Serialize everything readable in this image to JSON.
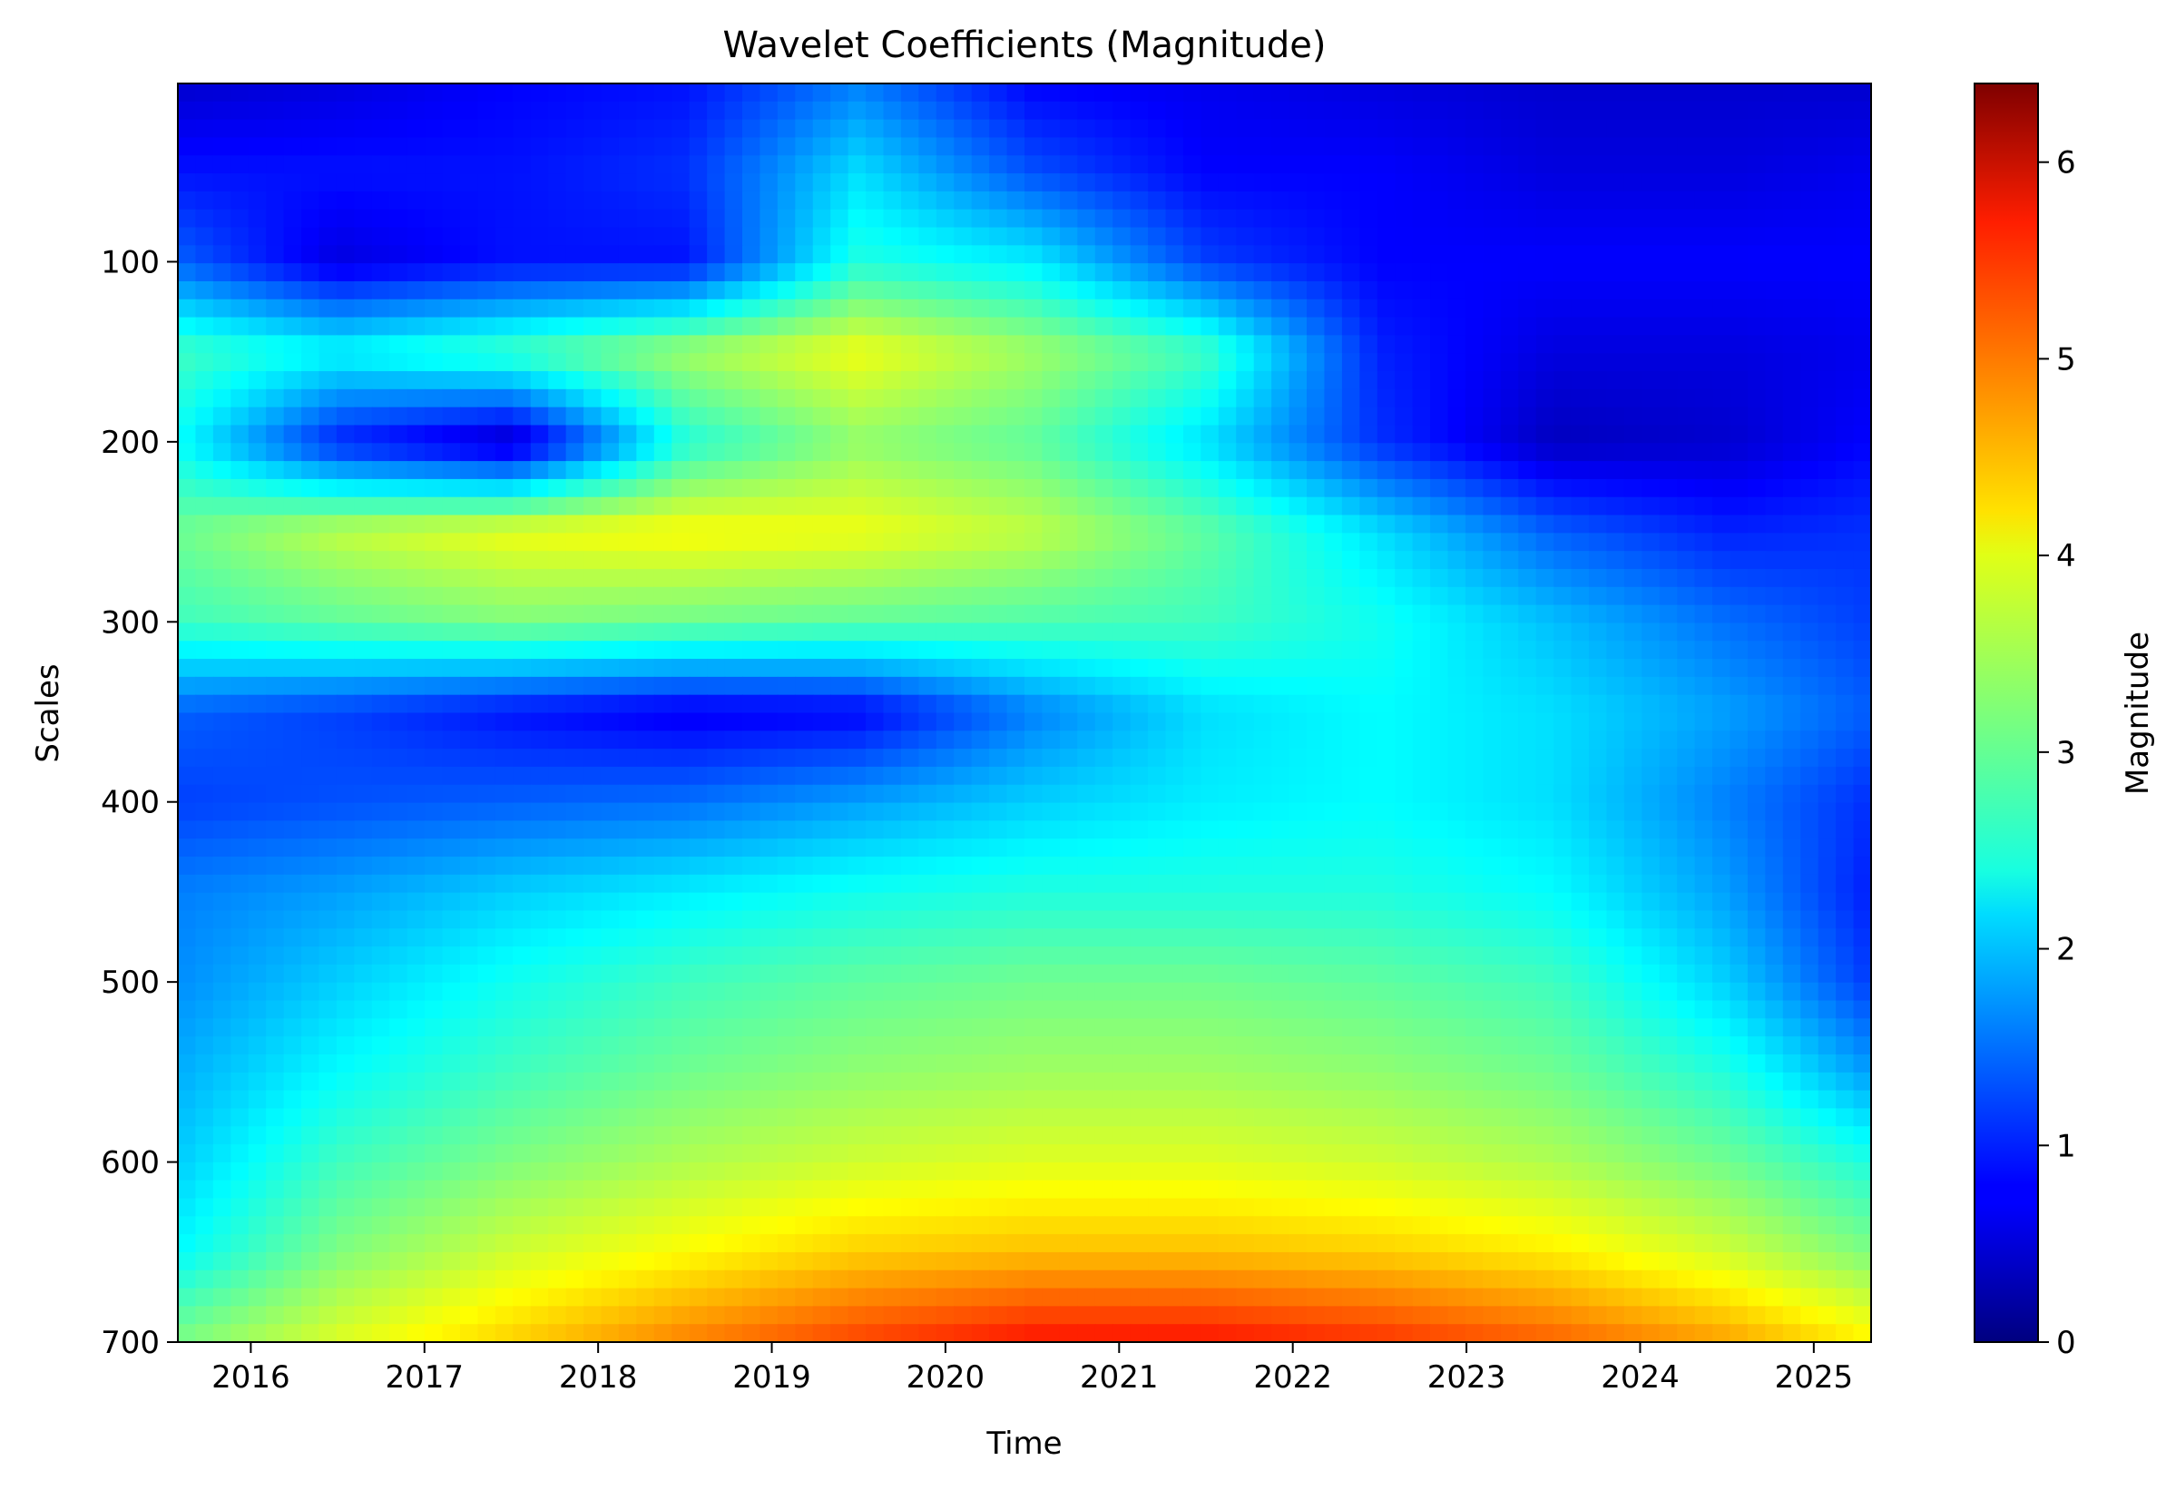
{
  "chart_data": {
    "type": "heatmap",
    "title": "Wavelet Coefficients (Magnitude)",
    "xlabel": "Time",
    "ylabel": "Scales",
    "xlim": [
      "2015-08",
      "2025-04"
    ],
    "ylim": [
      1,
      700
    ],
    "y_inverted": true,
    "x_ticks": [
      "2016",
      "2017",
      "2018",
      "2019",
      "2020",
      "2021",
      "2022",
      "2023",
      "2024",
      "2025"
    ],
    "y_ticks": [
      "100",
      "200",
      "300",
      "400",
      "500",
      "600",
      "700"
    ],
    "y_tick_values": [
      100,
      200,
      300,
      400,
      500,
      600,
      700
    ],
    "colormap": "jet",
    "colorbar": {
      "label": "Magnitude",
      "range": [
        0,
        6.4
      ],
      "ticks": [
        "0",
        "1",
        "2",
        "3",
        "4",
        "5",
        "6"
      ],
      "tick_values": [
        0,
        1,
        2,
        3,
        4,
        5,
        6
      ]
    },
    "x_year_values": [
      2016,
      2017,
      2018,
      2019,
      2020,
      2021,
      2022,
      2023,
      2024,
      2025
    ],
    "magnitude_grid": {
      "x_years": [
        2015.6,
        2016.5,
        2017.5,
        2018.5,
        2019.5,
        2020.5,
        2021.5,
        2022.5,
        2023.5,
        2024.5,
        2025.3
      ],
      "scales": [
        1,
        50,
        100,
        150,
        200,
        250,
        300,
        350,
        400,
        450,
        500,
        550,
        600,
        650,
        700
      ],
      "values": [
        [
          0.5,
          0.6,
          0.8,
          0.9,
          1.6,
          0.8,
          0.7,
          0.6,
          0.5,
          0.5,
          0.5
        ],
        [
          0.9,
          0.9,
          0.9,
          1.1,
          2.2,
          1.3,
          0.8,
          0.8,
          0.6,
          0.6,
          0.7
        ],
        [
          1.4,
          0.6,
          0.9,
          0.9,
          2.6,
          2.3,
          1.2,
          0.8,
          0.8,
          0.8,
          0.8
        ],
        [
          2.8,
          2.4,
          2.8,
          3.4,
          3.9,
          3.4,
          2.8,
          1.0,
          0.6,
          0.6,
          0.7
        ],
        [
          2.4,
          1.0,
          0.4,
          2.6,
          3.3,
          3.0,
          2.2,
          1.1,
          0.4,
          0.5,
          0.8
        ],
        [
          3.1,
          3.6,
          3.9,
          4.0,
          3.9,
          3.6,
          3.0,
          2.2,
          1.4,
          1.0,
          1.1
        ],
        [
          2.8,
          3.0,
          3.2,
          3.1,
          3.0,
          2.9,
          2.8,
          2.5,
          2.0,
          1.5,
          1.2
        ],
        [
          1.4,
          1.2,
          0.9,
          0.7,
          0.8,
          1.6,
          2.2,
          2.4,
          2.2,
          1.8,
          1.4
        ],
        [
          1.2,
          1.3,
          1.4,
          1.5,
          1.8,
          2.1,
          2.3,
          2.4,
          2.2,
          1.6,
          1.1
        ],
        [
          1.6,
          1.8,
          2.1,
          2.3,
          2.5,
          2.6,
          2.6,
          2.6,
          2.4,
          1.8,
          1.0
        ],
        [
          1.7,
          2.1,
          2.5,
          2.8,
          3.0,
          3.1,
          3.1,
          3.0,
          2.8,
          2.1,
          1.2
        ],
        [
          1.9,
          2.4,
          2.8,
          3.1,
          3.3,
          3.4,
          3.4,
          3.3,
          3.1,
          2.6,
          1.8
        ],
        [
          2.1,
          2.8,
          3.2,
          3.5,
          3.7,
          3.8,
          3.8,
          3.7,
          3.5,
          3.1,
          2.6
        ],
        [
          2.4,
          3.2,
          3.7,
          4.0,
          4.3,
          4.4,
          4.4,
          4.3,
          4.1,
          3.7,
          3.2
        ],
        [
          3.2,
          3.8,
          4.3,
          4.8,
          5.2,
          5.5,
          5.5,
          5.3,
          5.0,
          4.6,
          4.1
        ]
      ]
    }
  }
}
